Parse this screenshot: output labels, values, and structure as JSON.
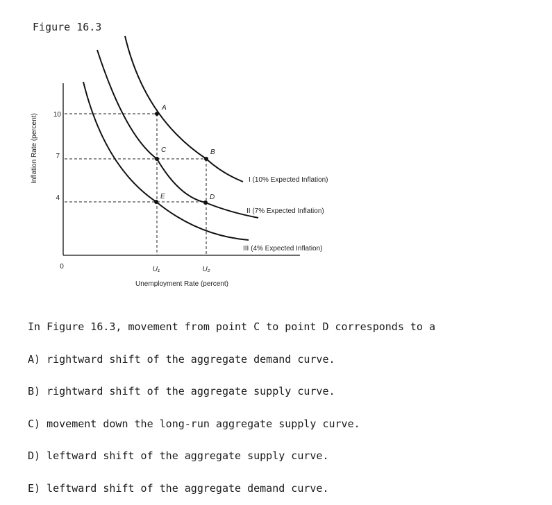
{
  "figure": {
    "title": "Figure 16.3"
  },
  "chart_data": {
    "type": "line",
    "title": "",
    "xlabel": "Unemployment Rate (percent)",
    "ylabel": "Inflation Rate (percent)",
    "origin_label": "0",
    "y_ticks": [
      {
        "value": 10,
        "label": "10"
      },
      {
        "value": 7,
        "label": "7"
      },
      {
        "value": 4,
        "label": "4"
      }
    ],
    "x_ticks": [
      {
        "value": "U1",
        "label": "U₁"
      },
      {
        "value": "U2",
        "label": "U₂"
      }
    ],
    "series": [
      {
        "name": "I (10% Expected Inflation)"
      },
      {
        "name": "II (7% Expected Inflation)"
      },
      {
        "name": "III (4% Expected Inflation)"
      }
    ],
    "points": [
      {
        "label": "A",
        "x": "U1",
        "y": 10
      },
      {
        "label": "B",
        "x": "U2",
        "y": 7
      },
      {
        "label": "C",
        "x": "U1",
        "y": 7
      },
      {
        "label": "D",
        "x": "U2",
        "y": 4
      },
      {
        "label": "E",
        "x": "U1",
        "y": 4
      }
    ],
    "grid": false
  },
  "question": {
    "stem": "In Figure 16.3, movement from point C to point D corresponds to a",
    "options": [
      "A) rightward shift of the aggregate demand curve.",
      "B) rightward shift of the aggregate supply curve.",
      "C) movement down the long-run aggregate supply curve.",
      "D) leftward shift of the aggregate supply curve.",
      "E) leftward shift of the aggregate demand curve."
    ]
  }
}
